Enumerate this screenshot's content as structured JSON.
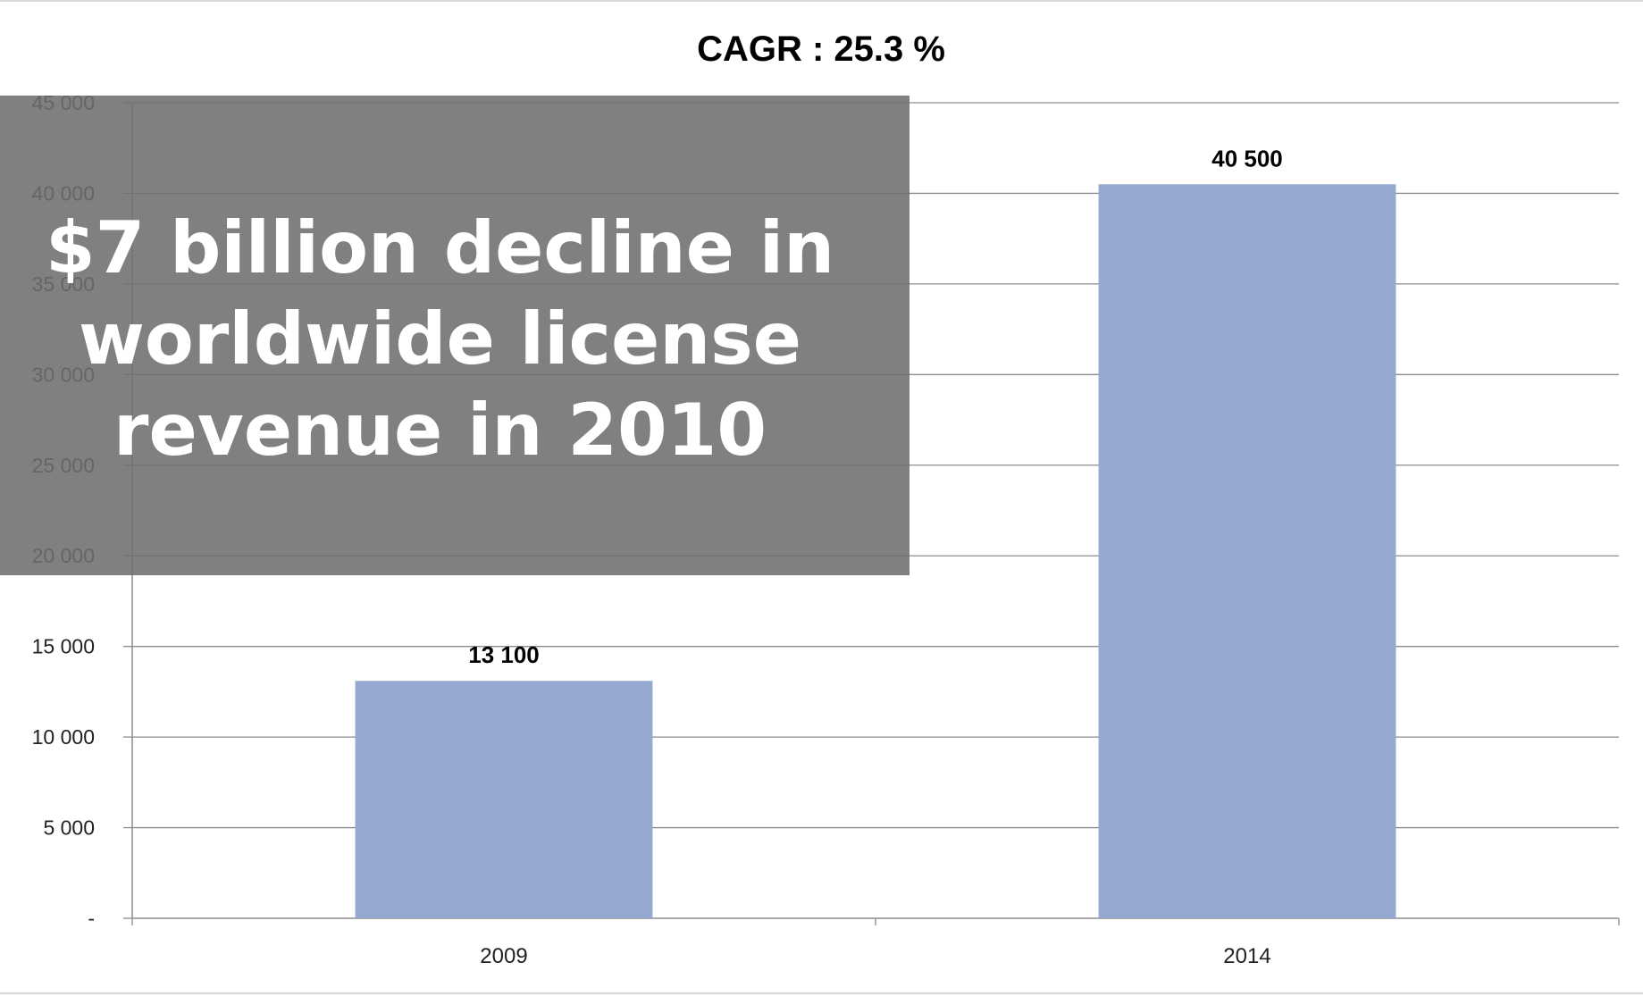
{
  "overlay": {
    "text": "$7 billion decline in\nworldwide license\nrevenue in 2010"
  },
  "colors": {
    "bar": "#95a9d0",
    "gridline": "#8c8c8c",
    "overlay": "#6e6e6e"
  },
  "chart_data": {
    "type": "bar",
    "title": "CAGR : 25.3 %",
    "xlabel": "",
    "ylabel": "",
    "categories": [
      "2009",
      "2014"
    ],
    "values": [
      13100,
      40500
    ],
    "data_labels": [
      "13 100",
      "40 500"
    ],
    "ylim": [
      0,
      45000
    ],
    "yticks": [
      0,
      5000,
      10000,
      15000,
      20000,
      25000,
      30000,
      35000,
      40000,
      45000
    ],
    "ytick_labels": [
      "-",
      "5 000",
      "10 000",
      "15 000",
      "20 000",
      "25 000",
      "30 000",
      "35 000",
      "40 000",
      "45 000"
    ],
    "grid": true,
    "legend": "none"
  }
}
